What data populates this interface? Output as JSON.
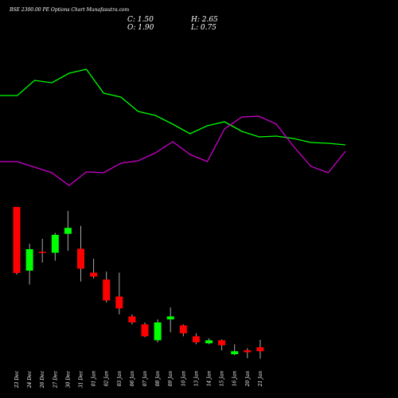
{
  "chart_data": [
    {
      "type": "line",
      "ylim": [
        0,
        300
      ],
      "series": [
        {
          "color": "#00ff00",
          "values": [
            180,
            180,
            199,
            196,
            208,
            213,
            183,
            178,
            160,
            155,
            144,
            132,
            142,
            147,
            135,
            128,
            129,
            126,
            121,
            120,
            118
          ]
        },
        {
          "color": "#cc00cc",
          "values": [
            97,
            97,
            90,
            83,
            67,
            84,
            83,
            95,
            98,
            108,
            122,
            106,
            97,
            138,
            153,
            154,
            144,
            116,
            91,
            83,
            110
          ]
        }
      ]
    },
    {
      "type": "candlestick",
      "title": "BSE 2300.00 PE Options Chart Munafasutra.com",
      "ohlc_labels": [
        "C: 1.50",
        "H: 2.65",
        "O: 1.90",
        "L: 0.75"
      ],
      "categories": [
        "23 Dec",
        "24 Dec",
        "26 Dec",
        "27 Dec",
        "30 Dec",
        "31 Dec",
        "01 Jan",
        "02 Jan",
        "03 Jan",
        "06 Jan",
        "07 Jan",
        "08 Jan",
        "09 Jan",
        "10 Jan",
        "13 Jan",
        "14 Jan",
        "15 Jan",
        "16 Jan",
        "20 Jan",
        "21 Jan"
      ],
      "open": [
        16,
        9.6,
        11.5,
        11.4,
        13.3,
        11.8,
        9.4,
        8.7,
        7.0,
        5.0,
        4.2,
        2.6,
        4.7,
        4.1,
        3.0,
        2.3,
        2.6,
        1.2,
        1.6,
        1.9
      ],
      "high": [
        16,
        12.3,
        12.8,
        13.4,
        15.6,
        14.1,
        10.8,
        9.5,
        9.4,
        5.2,
        4.4,
        4.7,
        5.9,
        4.2,
        3.3,
        2.8,
        2.7,
        2.2,
        1.8,
        2.65
      ],
      "low": [
        9.2,
        8.2,
        10.4,
        10.6,
        11.6,
        8.5,
        8.8,
        6.4,
        5.2,
        4.2,
        2.9,
        2.4,
        3.4,
        3.0,
        2.2,
        2.2,
        1.6,
        1.1,
        0.8,
        0.75
      ],
      "close": [
        9.36,
        11.76,
        11.4,
        13.2,
        13.9,
        9.8,
        9.0,
        6.6,
        5.8,
        4.4,
        3.0,
        4.4,
        5.0,
        3.3,
        2.4,
        2.6,
        2.1,
        1.5,
        1.4,
        1.5
      ],
      "up_color": "#00ff00",
      "down_color": "#ff0000",
      "ylim": [
        0,
        20
      ]
    }
  ]
}
